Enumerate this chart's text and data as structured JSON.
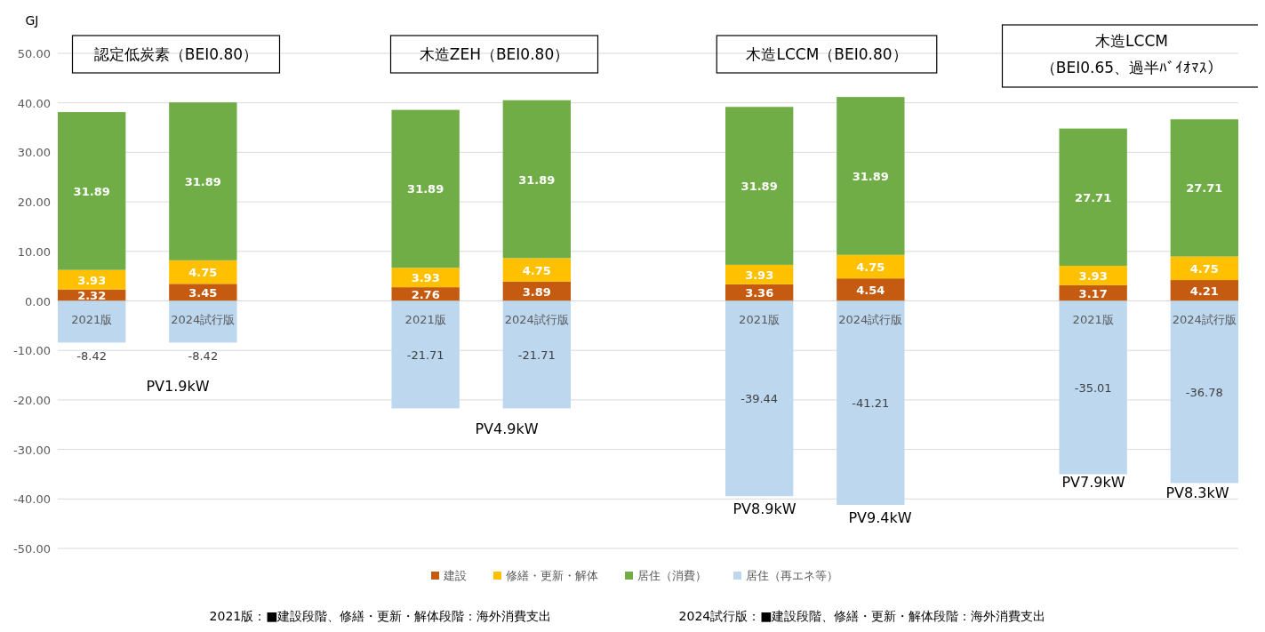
{
  "chart_data": {
    "type": "bar",
    "stacked": true,
    "ylabel": "GJ",
    "categories": [
      "2021版",
      "2024試行版",
      null,
      "2021版",
      "2024試行版",
      null,
      "2021版",
      "2024試行版",
      null,
      "2021版",
      "2024試行版"
    ],
    "series": [
      {
        "name": "建設",
        "color": "#c55a11",
        "values": [
          2.32,
          3.45,
          null,
          2.76,
          3.89,
          null,
          3.36,
          4.54,
          null,
          3.17,
          4.21
        ]
      },
      {
        "name": "修繕・更新・解体",
        "color": "#ffc000",
        "values": [
          3.93,
          4.75,
          null,
          3.93,
          4.75,
          null,
          3.93,
          4.75,
          null,
          3.93,
          4.75
        ]
      },
      {
        "name": "居住（消費）",
        "color": "#70ad47",
        "values": [
          31.89,
          31.89,
          null,
          31.89,
          31.89,
          null,
          31.89,
          31.89,
          null,
          27.71,
          27.71
        ]
      },
      {
        "name": "居住（再エネ等）",
        "color": "#bdd7ee",
        "values": [
          -8.42,
          -8.42,
          null,
          -21.71,
          -21.71,
          null,
          -39.44,
          -41.21,
          null,
          -35.01,
          -36.78
        ]
      }
    ],
    "ylim": [
      -50,
      50
    ],
    "yticks": [
      {
        "value": -50,
        "label": "-50.00"
      },
      {
        "value": -40,
        "label": "-40.00"
      },
      {
        "value": -30,
        "label": "-30.00"
      },
      {
        "value": -20,
        "label": "-20.00"
      },
      {
        "value": -10,
        "label": "-10.00"
      },
      {
        "value": 0,
        "label": "0.00"
      },
      {
        "value": 10,
        "label": "10.00"
      },
      {
        "value": 20,
        "label": "20.00"
      },
      {
        "value": 30,
        "label": "30.00"
      },
      {
        "value": 40,
        "label": "40.00"
      },
      {
        "value": 50,
        "label": "50.00"
      }
    ],
    "grid": "y",
    "legend": "bottom",
    "data_labels": true,
    "annotations": [
      "認定低炭素（BEI0.80）",
      "木造ZEH（BEI0.80）",
      "木造LCCM（BEI0.80）",
      "木造LCCM\n（BEI0.65、過半ﾊﾞｲｵﾏｽ）",
      "PV1.9kW",
      "PV4.9kW",
      "PV8.9kW",
      "PV9.4kW",
      "PV7.9kW",
      "PV8.3kW",
      "2021版：■建設段階、修繕・更新・解体段階：海外消費支出",
      "2024試行版：■建設段階、修繕・更新・解体段階：海外消費支出"
    ]
  }
}
